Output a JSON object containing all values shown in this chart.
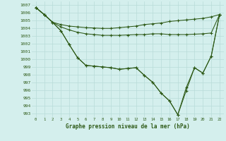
{
  "background_color": "#d4efed",
  "line_color": "#2d5916",
  "grid_color": "#b8dbd8",
  "title": "Graphe pression niveau de la mer (hPa)",
  "x": [
    0,
    1,
    2,
    3,
    4,
    5,
    6,
    7,
    8,
    9,
    10,
    11,
    12,
    13,
    14,
    15,
    16,
    17,
    18,
    19,
    20,
    21,
    22
  ],
  "ylim": [
    992.5,
    1007.5
  ],
  "yticks": [
    993,
    994,
    995,
    996,
    997,
    998,
    999,
    1000,
    1001,
    1002,
    1003,
    1004,
    1005,
    1006,
    1007
  ],
  "line1": [
    1006.7,
    1005.8,
    1004.8,
    1004.5,
    1004.3,
    1004.2,
    1004.1,
    1004.05,
    1004.0,
    1004.0,
    1004.1,
    1004.2,
    1004.3,
    1004.5,
    1004.6,
    1004.7,
    1004.9,
    1005.0,
    1005.1,
    1005.2,
    1005.3,
    1005.5,
    1005.8
  ],
  "line2": [
    1006.7,
    1005.8,
    1004.8,
    1004.2,
    1003.8,
    1003.5,
    1003.3,
    1003.2,
    1003.1,
    1003.1,
    1003.1,
    1003.15,
    1003.2,
    1003.2,
    1003.3,
    1003.3,
    1003.2,
    1003.2,
    1003.2,
    1003.25,
    1003.3,
    1003.4,
    1005.8
  ],
  "line3": [
    1006.7,
    1005.8,
    1004.8,
    1003.7,
    1001.9,
    1000.2,
    999.2,
    999.1,
    999.0,
    998.9,
    998.7,
    998.8,
    998.9,
    997.9,
    997.0,
    995.6,
    994.6,
    992.8,
    996.3,
    998.9,
    998.2,
    1000.4,
    1005.8
  ],
  "line4": [
    1006.7,
    1005.8,
    1004.8,
    1003.7,
    1001.9,
    1000.2,
    999.2,
    999.1,
    999.0,
    998.9,
    998.7,
    998.8,
    998.9,
    997.9,
    997.0,
    995.6,
    994.6,
    992.8,
    995.9,
    998.9,
    998.2,
    1000.4,
    1005.8
  ]
}
